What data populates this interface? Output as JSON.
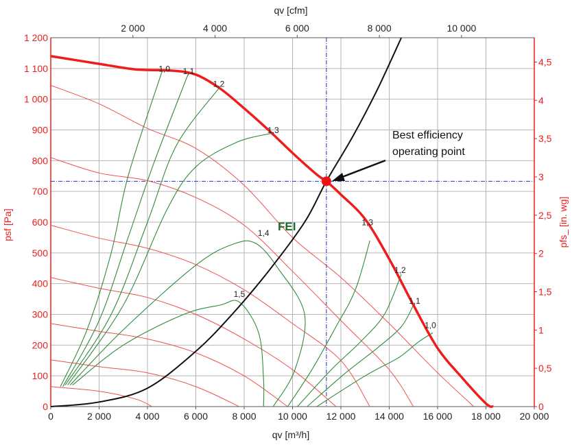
{
  "chart_data": {
    "type": "line",
    "title": "",
    "x_bottom": {
      "label": "qv [m³/h]",
      "range": [
        0,
        20000
      ],
      "ticks": [
        0,
        2000,
        4000,
        6000,
        8000,
        10000,
        12000,
        14000,
        16000,
        18000,
        20000
      ],
      "tick_labels": [
        "0",
        "2 000",
        "4 000",
        "6 000",
        "8 000",
        "10 000",
        "12 000",
        "14 000",
        "16 000",
        "18 000",
        "20 000"
      ]
    },
    "x_top": {
      "label": "qv [cfm]",
      "ticks": [
        2000,
        4000,
        6000,
        8000,
        10000
      ],
      "tick_labels": [
        "2 000",
        "4 000",
        "6 000",
        "8 000",
        "10 000"
      ]
    },
    "y_left": {
      "label": "psf [Pa]",
      "range": [
        0,
        1200
      ],
      "ticks": [
        0,
        100,
        200,
        300,
        400,
        500,
        600,
        700,
        800,
        900,
        1000,
        1100,
        1200
      ],
      "tick_labels": [
        "0",
        "100",
        "200",
        "300",
        "400",
        "500",
        "600",
        "700",
        "800",
        "900",
        "1 000",
        "1 100",
        "1 200"
      ]
    },
    "y_right": {
      "label": "pfs_ [in. wg]",
      "ticks": [
        0,
        0.5,
        1,
        1.5,
        2,
        2.5,
        3,
        3.5,
        4,
        4.5
      ],
      "tick_labels": [
        "0",
        "0,5",
        "1",
        "1,5",
        "2",
        "2,5",
        "3",
        "3,5",
        "4",
        "4,5"
      ]
    },
    "grid": true,
    "colors": {
      "main_curve": "#ee1c1c",
      "speed_curves": "#f05050",
      "fei_contours": "#2e8b3a",
      "system_curve": "#111111",
      "crosshair": "#2233cc",
      "grid": "#b4b4b4",
      "axis_red": "#ee1c1c",
      "operating_point": "#ee1111"
    },
    "series": [
      {
        "name": "",
        "kind": "main_fan_curve",
        "points": [
          [
            0,
            1140
          ],
          [
            2000,
            1115
          ],
          [
            3500,
            1097
          ],
          [
            5000,
            1093
          ],
          [
            6000,
            1080
          ],
          [
            7000,
            1035
          ],
          [
            8000,
            970
          ],
          [
            9000,
            900
          ],
          [
            10000,
            825
          ],
          [
            11000,
            755
          ],
          [
            11400,
            733
          ],
          [
            12000,
            690
          ],
          [
            13000,
            610
          ],
          [
            14000,
            480
          ],
          [
            15000,
            330
          ],
          [
            16000,
            190
          ],
          [
            17000,
            95
          ],
          [
            18000,
            10
          ],
          [
            18300,
            0
          ]
        ]
      },
      {
        "name": "",
        "kind": "speed_curves",
        "curves": [
          [
            [
              0,
              1045
            ],
            [
              2000,
              985
            ],
            [
              4000,
              905
            ],
            [
              6000,
              840
            ],
            [
              8000,
              720
            ],
            [
              10000,
              550
            ],
            [
              12000,
              420
            ],
            [
              14000,
              270
            ],
            [
              16000,
              110
            ],
            [
              17500,
              0
            ]
          ],
          [
            [
              0,
              810
            ],
            [
              2000,
              760
            ],
            [
              4000,
              735
            ],
            [
              6000,
              680
            ],
            [
              8000,
              590
            ],
            [
              10000,
              440
            ],
            [
              12000,
              280
            ],
            [
              14000,
              120
            ],
            [
              15000,
              0
            ]
          ],
          [
            [
              0,
              590
            ],
            [
              2000,
              548
            ],
            [
              4000,
              515
            ],
            [
              6000,
              462
            ],
            [
              8000,
              380
            ],
            [
              10000,
              270
            ],
            [
              12000,
              150
            ],
            [
              13200,
              0
            ]
          ],
          [
            [
              0,
              420
            ],
            [
              2000,
              385
            ],
            [
              4000,
              355
            ],
            [
              6000,
              300
            ],
            [
              8000,
              220
            ],
            [
              10000,
              120
            ],
            [
              11800,
              0
            ]
          ],
          [
            [
              0,
              270
            ],
            [
              2000,
              245
            ],
            [
              4000,
              220
            ],
            [
              6000,
              175
            ],
            [
              8000,
              100
            ],
            [
              9800,
              0
            ]
          ],
          [
            [
              0,
              152
            ],
            [
              2000,
              130
            ],
            [
              4000,
              110
            ],
            [
              6000,
              65
            ],
            [
              7800,
              0
            ]
          ],
          [
            [
              0,
              65
            ],
            [
              2000,
              50
            ],
            [
              3500,
              25
            ],
            [
              4200,
              0
            ]
          ]
        ]
      },
      {
        "name": "",
        "kind": "fei_contours",
        "curves": [
          [
            [
              400,
              65
            ],
            [
              1500,
              250
            ],
            [
              2500,
              500
            ],
            [
              3200,
              750
            ],
            [
              4600,
              1090
            ]
          ],
          [
            [
              500,
              65
            ],
            [
              2000,
              280
            ],
            [
              3200,
              550
            ],
            [
              4300,
              800
            ],
            [
              5700,
              1085
            ]
          ],
          [
            [
              600,
              70
            ],
            [
              2500,
              300
            ],
            [
              4000,
              600
            ],
            [
              5200,
              850
            ],
            [
              7000,
              1040
            ]
          ],
          [
            [
              700,
              70
            ],
            [
              3000,
              330
            ],
            [
              4800,
              640
            ],
            [
              6000,
              780
            ],
            [
              7700,
              860
            ],
            [
              9200,
              890
            ]
          ],
          [
            [
              800,
              70
            ],
            [
              3000,
              250
            ],
            [
              6000,
              460
            ],
            [
              7600,
              530
            ],
            [
              8500,
              530
            ],
            [
              9400,
              450
            ],
            [
              10500,
              300
            ],
            [
              10100,
              120
            ],
            [
              9200,
              0
            ]
          ],
          [
            [
              900,
              70
            ],
            [
              3000,
              200
            ],
            [
              5500,
              300
            ],
            [
              7000,
              330
            ],
            [
              7800,
              340
            ],
            [
              8600,
              240
            ],
            [
              8800,
              90
            ],
            [
              8800,
              0
            ]
          ],
          [
            [
              9800,
              0
            ],
            [
              10800,
              120
            ],
            [
              11800,
              260
            ],
            [
              12600,
              380
            ],
            [
              13200,
              540
            ]
          ],
          [
            [
              10200,
              0
            ],
            [
              11600,
              120
            ],
            [
              12800,
              210
            ],
            [
              13800,
              300
            ],
            [
              14500,
              430
            ]
          ],
          [
            [
              10600,
              0
            ],
            [
              12200,
              110
            ],
            [
              13500,
              190
            ],
            [
              14500,
              260
            ],
            [
              15000,
              330
            ]
          ],
          [
            [
              11000,
              0
            ],
            [
              13000,
              100
            ],
            [
              14400,
              160
            ],
            [
              15200,
              210
            ],
            [
              15800,
              240
            ]
          ]
        ]
      },
      {
        "name": "",
        "kind": "system_curve",
        "points": [
          [
            0,
            0
          ],
          [
            2000,
            15
          ],
          [
            4000,
            60
          ],
          [
            6000,
            180
          ],
          [
            7500,
            300
          ],
          [
            9000,
            440
          ],
          [
            10500,
            600
          ],
          [
            11400,
            733
          ],
          [
            12500,
            880
          ],
          [
            13500,
            1030
          ],
          [
            14500,
            1200
          ]
        ]
      }
    ],
    "curve_labels": [
      {
        "text": "1,0",
        "x": 4700,
        "y": 1090
      },
      {
        "text": "1,1",
        "x": 5700,
        "y": 1082
      },
      {
        "text": "1,2",
        "x": 6950,
        "y": 1040
      },
      {
        "text": "1,3",
        "x": 9200,
        "y": 890
      },
      {
        "text": "1,4",
        "x": 8800,
        "y": 555
      },
      {
        "text": "1,5",
        "x": 7800,
        "y": 357
      },
      {
        "text": "1,3",
        "x": 13100,
        "y": 590
      },
      {
        "text": "1,2",
        "x": 14450,
        "y": 435
      },
      {
        "text": "1,1",
        "x": 15050,
        "y": 335
      },
      {
        "text": "1,0",
        "x": 15700,
        "y": 255
      }
    ],
    "crosshair": {
      "x": 11400,
      "y": 733
    },
    "operating_point": {
      "x": 11400,
      "y": 733
    },
    "annotations": [
      {
        "lines": [
          "Best efficiency",
          "operating point"
        ],
        "points_to": [
          11400,
          733
        ]
      },
      {
        "text": "FEI"
      }
    ]
  }
}
